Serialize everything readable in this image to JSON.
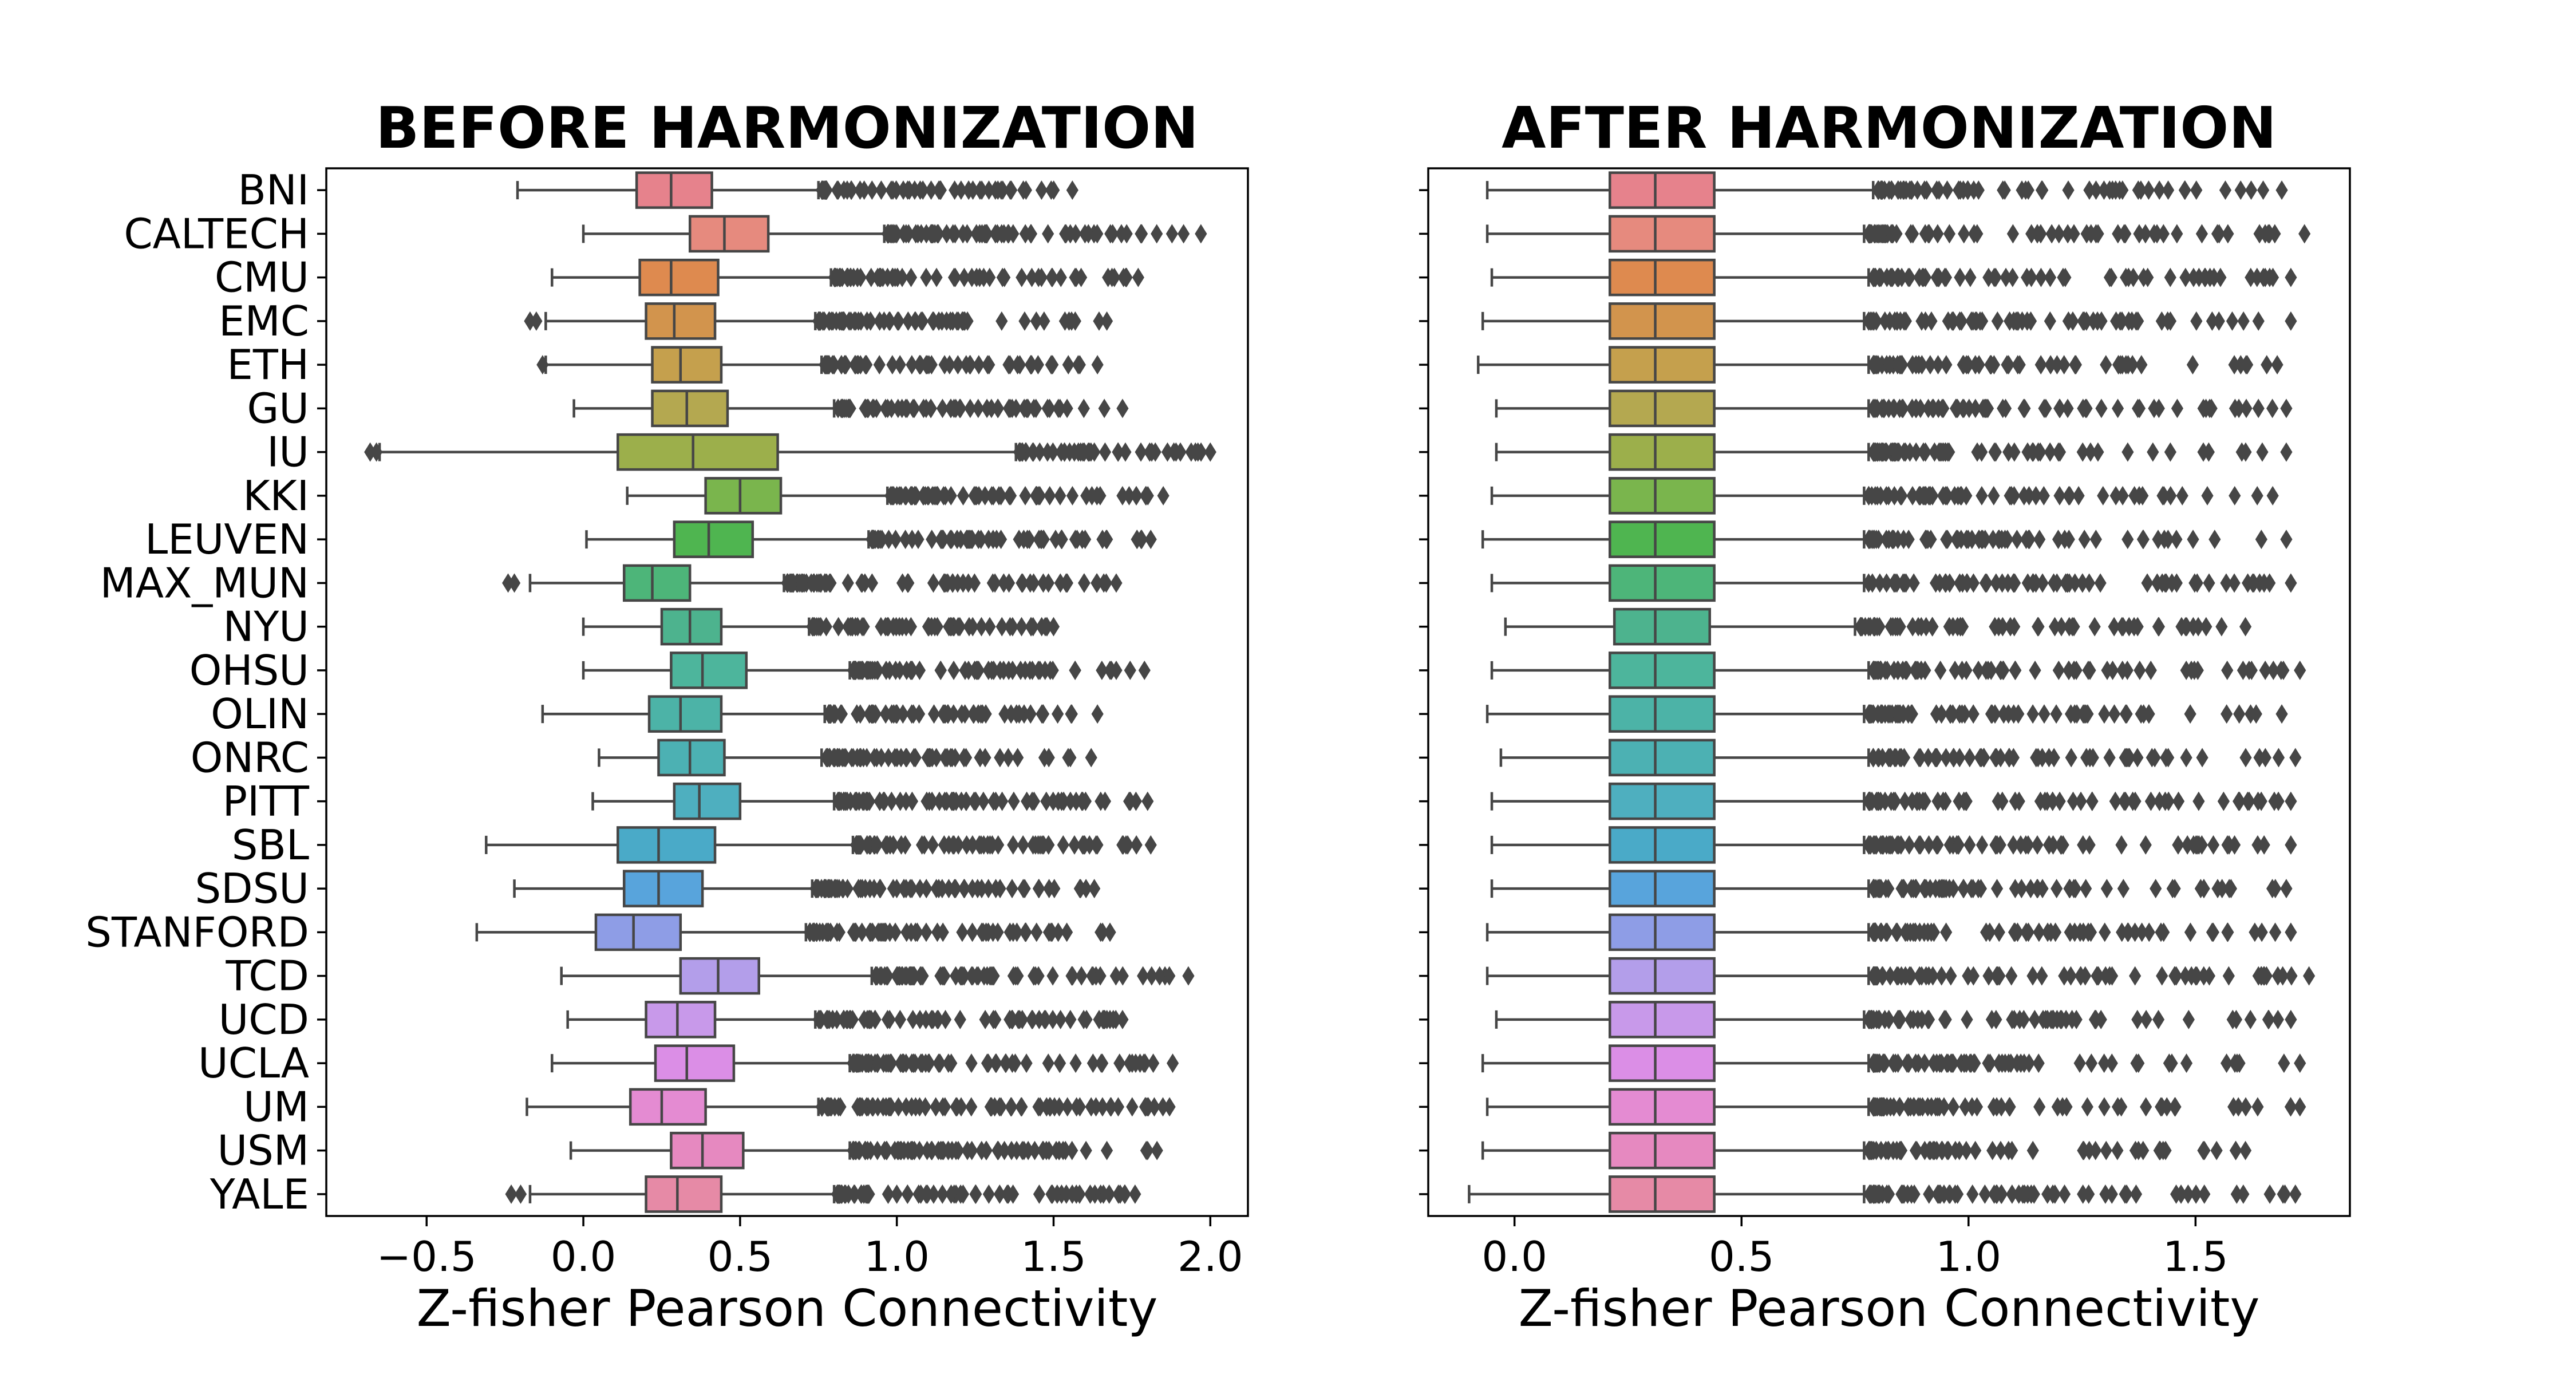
{
  "chart_data": [
    {
      "type": "boxplot",
      "orientation": "horizontal",
      "title": "BEFORE HARMONIZATION",
      "xlabel": "Z-fisher Pearson Connectivity",
      "ylabel": "",
      "xlim": [
        -0.82,
        2.12
      ],
      "xticks": [
        -0.5,
        0.0,
        0.5,
        1.0,
        1.5,
        2.0
      ],
      "xtick_labels": [
        "−0.5",
        "0.0",
        "0.5",
        "1.0",
        "1.5",
        "2.0"
      ],
      "grid": false,
      "series": [
        {
          "site": "BNI",
          "color": "#e6828c",
          "whisker_low": -0.21,
          "q1": 0.17,
          "median": 0.28,
          "q3": 0.41,
          "whisker_high": 0.75,
          "outlier_max": 1.56,
          "low_outliers": []
        },
        {
          "site": "CALTECH",
          "color": "#e68a7e",
          "whisker_low": 0.0,
          "q1": 0.34,
          "median": 0.45,
          "q3": 0.59,
          "whisker_high": 0.96,
          "outlier_max": 1.97,
          "low_outliers": []
        },
        {
          "site": "CMU",
          "color": "#de8a4f",
          "whisker_low": -0.1,
          "q1": 0.18,
          "median": 0.28,
          "q3": 0.43,
          "whisker_high": 0.79,
          "outlier_max": 1.77,
          "low_outliers": []
        },
        {
          "site": "EMC",
          "color": "#d2944d",
          "whisker_low": -0.12,
          "q1": 0.2,
          "median": 0.29,
          "q3": 0.42,
          "whisker_high": 0.74,
          "outlier_max": 1.67,
          "low_outliers": [
            -0.17,
            -0.15
          ]
        },
        {
          "site": "ETH",
          "color": "#c5a04d",
          "whisker_low": -0.12,
          "q1": 0.22,
          "median": 0.31,
          "q3": 0.44,
          "whisker_high": 0.76,
          "outlier_max": 1.64,
          "low_outliers": [
            -0.13
          ]
        },
        {
          "site": "GU",
          "color": "#b4a850",
          "whisker_low": -0.03,
          "q1": 0.22,
          "median": 0.33,
          "q3": 0.46,
          "whisker_high": 0.8,
          "outlier_max": 1.72,
          "low_outliers": []
        },
        {
          "site": "IU",
          "color": "#9caf4b",
          "whisker_low": -0.65,
          "q1": 0.11,
          "median": 0.35,
          "q3": 0.62,
          "whisker_high": 1.38,
          "outlier_max": 2.0,
          "low_outliers": [
            -0.68,
            -0.66
          ]
        },
        {
          "site": "KKI",
          "color": "#7ab54d",
          "whisker_low": 0.14,
          "q1": 0.39,
          "median": 0.5,
          "q3": 0.63,
          "whisker_high": 0.97,
          "outlier_max": 1.85,
          "low_outliers": []
        },
        {
          "site": "LEUVEN",
          "color": "#4fb550",
          "whisker_low": 0.01,
          "q1": 0.29,
          "median": 0.4,
          "q3": 0.54,
          "whisker_high": 0.91,
          "outlier_max": 1.81,
          "low_outliers": []
        },
        {
          "site": "MAX_MUN",
          "color": "#4db579",
          "whisker_low": -0.17,
          "q1": 0.13,
          "median": 0.22,
          "q3": 0.34,
          "whisker_high": 0.64,
          "outlier_max": 1.7,
          "low_outliers": [
            -0.24,
            -0.22
          ]
        },
        {
          "site": "NYU",
          "color": "#4db38e",
          "whisker_low": 0.0,
          "q1": 0.25,
          "median": 0.34,
          "q3": 0.44,
          "whisker_high": 0.72,
          "outlier_max": 1.5,
          "low_outliers": []
        },
        {
          "site": "OHSU",
          "color": "#4db59c",
          "whisker_low": 0.0,
          "q1": 0.28,
          "median": 0.38,
          "q3": 0.52,
          "whisker_high": 0.85,
          "outlier_max": 1.79,
          "low_outliers": []
        },
        {
          "site": "OLIN",
          "color": "#4cb3a7",
          "whisker_low": -0.13,
          "q1": 0.21,
          "median": 0.31,
          "q3": 0.44,
          "whisker_high": 0.77,
          "outlier_max": 1.64,
          "low_outliers": []
        },
        {
          "site": "ONRC",
          "color": "#4cb1b3",
          "whisker_low": 0.05,
          "q1": 0.24,
          "median": 0.34,
          "q3": 0.45,
          "whisker_high": 0.76,
          "outlier_max": 1.62,
          "low_outliers": []
        },
        {
          "site": "PITT",
          "color": "#4eafbf",
          "whisker_low": 0.03,
          "q1": 0.29,
          "median": 0.37,
          "q3": 0.5,
          "whisker_high": 0.8,
          "outlier_max": 1.8,
          "low_outliers": []
        },
        {
          "site": "SBL",
          "color": "#4aaac8",
          "whisker_low": -0.31,
          "q1": 0.11,
          "median": 0.24,
          "q3": 0.42,
          "whisker_high": 0.86,
          "outlier_max": 1.81,
          "low_outliers": []
        },
        {
          "site": "SDSU",
          "color": "#58a4dc",
          "whisker_low": -0.22,
          "q1": 0.13,
          "median": 0.24,
          "q3": 0.38,
          "whisker_high": 0.73,
          "outlier_max": 1.63,
          "low_outliers": []
        },
        {
          "site": "STANFORD",
          "color": "#8e9de6",
          "whisker_low": -0.34,
          "q1": 0.04,
          "median": 0.16,
          "q3": 0.31,
          "whisker_high": 0.71,
          "outlier_max": 1.68,
          "low_outliers": []
        },
        {
          "site": "TCD",
          "color": "#b39eea",
          "whisker_low": -0.07,
          "q1": 0.31,
          "median": 0.43,
          "q3": 0.56,
          "whisker_high": 0.92,
          "outlier_max": 1.93,
          "low_outliers": []
        },
        {
          "site": "UCD",
          "color": "#c899ea",
          "whisker_low": -0.05,
          "q1": 0.2,
          "median": 0.3,
          "q3": 0.42,
          "whisker_high": 0.74,
          "outlier_max": 1.72,
          "low_outliers": []
        },
        {
          "site": "UCLA",
          "color": "#db8ee6",
          "whisker_low": -0.1,
          "q1": 0.23,
          "median": 0.33,
          "q3": 0.48,
          "whisker_high": 0.85,
          "outlier_max": 1.88,
          "low_outliers": []
        },
        {
          "site": "UM",
          "color": "#e48bd2",
          "whisker_low": -0.18,
          "q1": 0.15,
          "median": 0.25,
          "q3": 0.39,
          "whisker_high": 0.75,
          "outlier_max": 1.87,
          "low_outliers": []
        },
        {
          "site": "USM",
          "color": "#e689c0",
          "whisker_low": -0.04,
          "q1": 0.28,
          "median": 0.38,
          "q3": 0.51,
          "whisker_high": 0.85,
          "outlier_max": 1.83,
          "low_outliers": []
        },
        {
          "site": "YALE",
          "color": "#e68aa6",
          "whisker_low": -0.17,
          "q1": 0.2,
          "median": 0.3,
          "q3": 0.44,
          "whisker_high": 0.8,
          "outlier_max": 1.76,
          "low_outliers": [
            -0.23,
            -0.2
          ]
        }
      ]
    },
    {
      "type": "boxplot",
      "orientation": "horizontal",
      "title": "AFTER HARMONIZATION",
      "xlabel": "Z-fisher Pearson Connectivity",
      "ylabel": "",
      "xlim": [
        -0.19,
        1.84
      ],
      "xticks": [
        0.0,
        0.5,
        1.0,
        1.5
      ],
      "xtick_labels": [
        "0.0",
        "0.5",
        "1.0",
        "1.5"
      ],
      "grid": false,
      "series": [
        {
          "site": "BNI",
          "color": "#e6828c",
          "whisker_low": -0.06,
          "q1": 0.21,
          "median": 0.31,
          "q3": 0.44,
          "whisker_high": 0.79,
          "outlier_max": 1.69,
          "low_outliers": []
        },
        {
          "site": "CALTECH",
          "color": "#e68a7e",
          "whisker_low": -0.06,
          "q1": 0.21,
          "median": 0.31,
          "q3": 0.44,
          "whisker_high": 0.77,
          "outlier_max": 1.74,
          "low_outliers": []
        },
        {
          "site": "CMU",
          "color": "#de8a4f",
          "whisker_low": -0.05,
          "q1": 0.21,
          "median": 0.31,
          "q3": 0.44,
          "whisker_high": 0.78,
          "outlier_max": 1.71,
          "low_outliers": []
        },
        {
          "site": "EMC",
          "color": "#d2944d",
          "whisker_low": -0.07,
          "q1": 0.21,
          "median": 0.31,
          "q3": 0.44,
          "whisker_high": 0.77,
          "outlier_max": 1.71,
          "low_outliers": []
        },
        {
          "site": "ETH",
          "color": "#c5a04d",
          "whisker_low": -0.08,
          "q1": 0.21,
          "median": 0.31,
          "q3": 0.44,
          "whisker_high": 0.78,
          "outlier_max": 1.68,
          "low_outliers": []
        },
        {
          "site": "GU",
          "color": "#b4a850",
          "whisker_low": -0.04,
          "q1": 0.21,
          "median": 0.31,
          "q3": 0.44,
          "whisker_high": 0.78,
          "outlier_max": 1.7,
          "low_outliers": []
        },
        {
          "site": "IU",
          "color": "#9caf4b",
          "whisker_low": -0.04,
          "q1": 0.21,
          "median": 0.31,
          "q3": 0.44,
          "whisker_high": 0.78,
          "outlier_max": 1.7,
          "low_outliers": []
        },
        {
          "site": "KKI",
          "color": "#7ab54d",
          "whisker_low": -0.05,
          "q1": 0.21,
          "median": 0.31,
          "q3": 0.44,
          "whisker_high": 0.77,
          "outlier_max": 1.67,
          "low_outliers": []
        },
        {
          "site": "LEUVEN",
          "color": "#4fb550",
          "whisker_low": -0.07,
          "q1": 0.21,
          "median": 0.31,
          "q3": 0.44,
          "whisker_high": 0.77,
          "outlier_max": 1.7,
          "low_outliers": []
        },
        {
          "site": "MAX_MUN",
          "color": "#4db579",
          "whisker_low": -0.05,
          "q1": 0.21,
          "median": 0.31,
          "q3": 0.44,
          "whisker_high": 0.77,
          "outlier_max": 1.71,
          "low_outliers": []
        },
        {
          "site": "NYU",
          "color": "#4db38e",
          "whisker_low": -0.02,
          "q1": 0.22,
          "median": 0.31,
          "q3": 0.43,
          "whisker_high": 0.75,
          "outlier_max": 1.61,
          "low_outliers": []
        },
        {
          "site": "OHSU",
          "color": "#4db59c",
          "whisker_low": -0.05,
          "q1": 0.21,
          "median": 0.31,
          "q3": 0.44,
          "whisker_high": 0.78,
          "outlier_max": 1.73,
          "low_outliers": []
        },
        {
          "site": "OLIN",
          "color": "#4cb3a7",
          "whisker_low": -0.06,
          "q1": 0.21,
          "median": 0.31,
          "q3": 0.44,
          "whisker_high": 0.77,
          "outlier_max": 1.69,
          "low_outliers": []
        },
        {
          "site": "ONRC",
          "color": "#4cb1b3",
          "whisker_low": -0.03,
          "q1": 0.21,
          "median": 0.31,
          "q3": 0.44,
          "whisker_high": 0.78,
          "outlier_max": 1.72,
          "low_outliers": []
        },
        {
          "site": "PITT",
          "color": "#4eafbf",
          "whisker_low": -0.05,
          "q1": 0.21,
          "median": 0.31,
          "q3": 0.44,
          "whisker_high": 0.77,
          "outlier_max": 1.71,
          "low_outliers": []
        },
        {
          "site": "SBL",
          "color": "#4aaac8",
          "whisker_low": -0.05,
          "q1": 0.21,
          "median": 0.31,
          "q3": 0.44,
          "whisker_high": 0.77,
          "outlier_max": 1.71,
          "low_outliers": []
        },
        {
          "site": "SDSU",
          "color": "#58a4dc",
          "whisker_low": -0.05,
          "q1": 0.21,
          "median": 0.31,
          "q3": 0.44,
          "whisker_high": 0.78,
          "outlier_max": 1.7,
          "low_outliers": []
        },
        {
          "site": "STANFORD",
          "color": "#8e9de6",
          "whisker_low": -0.06,
          "q1": 0.21,
          "median": 0.31,
          "q3": 0.44,
          "whisker_high": 0.78,
          "outlier_max": 1.71,
          "low_outliers": []
        },
        {
          "site": "TCD",
          "color": "#b39eea",
          "whisker_low": -0.06,
          "q1": 0.21,
          "median": 0.31,
          "q3": 0.44,
          "whisker_high": 0.78,
          "outlier_max": 1.75,
          "low_outliers": []
        },
        {
          "site": "UCD",
          "color": "#c899ea",
          "whisker_low": -0.04,
          "q1": 0.21,
          "median": 0.31,
          "q3": 0.44,
          "whisker_high": 0.77,
          "outlier_max": 1.71,
          "low_outliers": []
        },
        {
          "site": "UCLA",
          "color": "#db8ee6",
          "whisker_low": -0.07,
          "q1": 0.21,
          "median": 0.31,
          "q3": 0.44,
          "whisker_high": 0.78,
          "outlier_max": 1.73,
          "low_outliers": []
        },
        {
          "site": "UM",
          "color": "#e48bd2",
          "whisker_low": -0.06,
          "q1": 0.21,
          "median": 0.31,
          "q3": 0.44,
          "whisker_high": 0.78,
          "outlier_max": 1.73,
          "low_outliers": []
        },
        {
          "site": "USM",
          "color": "#e689c0",
          "whisker_low": -0.07,
          "q1": 0.21,
          "median": 0.31,
          "q3": 0.44,
          "whisker_high": 0.77,
          "outlier_max": 1.61,
          "low_outliers": []
        },
        {
          "site": "YALE",
          "color": "#e68aa6",
          "whisker_low": -0.1,
          "q1": 0.21,
          "median": 0.31,
          "q3": 0.44,
          "whisker_high": 0.77,
          "outlier_max": 1.72,
          "low_outliers": []
        }
      ]
    }
  ],
  "colors": {
    "line": "#464646",
    "axes": "#000000",
    "background": "#ffffff"
  }
}
